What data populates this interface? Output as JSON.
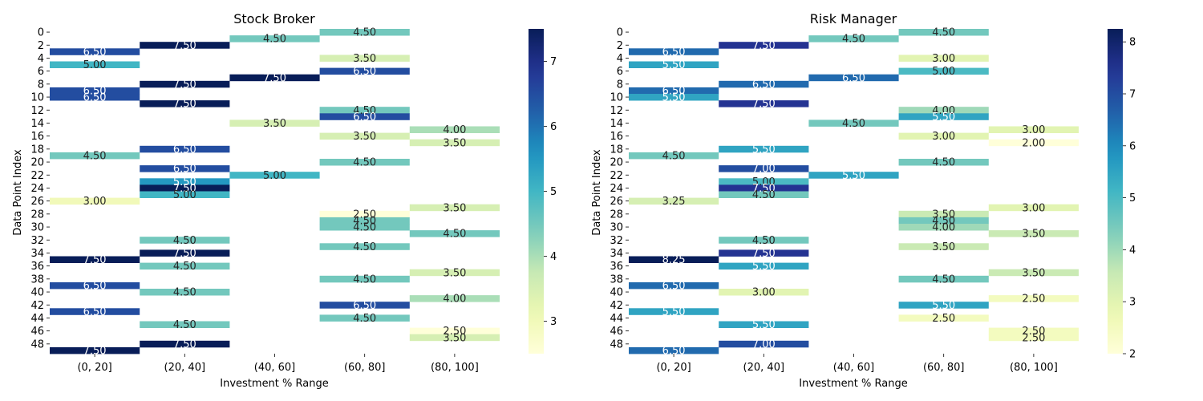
{
  "chart_data": [
    {
      "type": "heatmap",
      "title": "Stock Broker",
      "xlabel": "Investment % Range",
      "ylabel": "Data Point Index",
      "x_categories": [
        "(0, 20]",
        "(20, 40]",
        "(40, 60]",
        "(60, 80]",
        "(80, 100]"
      ],
      "y_tick_labels": [
        "0",
        "2",
        "4",
        "6",
        "8",
        "10",
        "12",
        "14",
        "16",
        "18",
        "20",
        "22",
        "24",
        "26",
        "28",
        "30",
        "32",
        "34",
        "36",
        "38",
        "40",
        "42",
        "44",
        "46",
        "48"
      ],
      "rows": 50,
      "colorbar": {
        "min": 2.5,
        "max": 7.5,
        "ticks": [
          "3",
          "4",
          "5",
          "6",
          "7"
        ]
      },
      "colormap": "YlGnBu",
      "cells": [
        {
          "row": 0,
          "col": 3,
          "value": 4.5,
          "label": "4.50"
        },
        {
          "row": 1,
          "col": 2,
          "value": 4.5,
          "label": "4.50"
        },
        {
          "row": 2,
          "col": 1,
          "value": 7.5,
          "label": "7.50"
        },
        {
          "row": 3,
          "col": 0,
          "value": 6.5,
          "label": "6.50"
        },
        {
          "row": 4,
          "col": 3,
          "value": 3.5,
          "label": "3.50"
        },
        {
          "row": 5,
          "col": 0,
          "value": 5.0,
          "label": "5.00"
        },
        {
          "row": 6,
          "col": 3,
          "value": 6.5,
          "label": "6.50"
        },
        {
          "row": 7,
          "col": 2,
          "value": 7.5,
          "label": "7.50"
        },
        {
          "row": 8,
          "col": 1,
          "value": 7.5,
          "label": "7.50"
        },
        {
          "row": 9,
          "col": 0,
          "value": 6.5,
          "label": "6.50"
        },
        {
          "row": 10,
          "col": 0,
          "value": 6.5,
          "label": "6.50"
        },
        {
          "row": 11,
          "col": 1,
          "value": 7.5,
          "label": "7.50"
        },
        {
          "row": 12,
          "col": 3,
          "value": 4.5,
          "label": "4.50"
        },
        {
          "row": 13,
          "col": 3,
          "value": 6.5,
          "label": "6.50"
        },
        {
          "row": 14,
          "col": 2,
          "value": 3.5,
          "label": "3.50"
        },
        {
          "row": 15,
          "col": 4,
          "value": 4.0,
          "label": "4.00"
        },
        {
          "row": 16,
          "col": 3,
          "value": 3.5,
          "label": "3.50"
        },
        {
          "row": 17,
          "col": 4,
          "value": 3.5,
          "label": "3.50"
        },
        {
          "row": 18,
          "col": 1,
          "value": 6.5,
          "label": "6.50"
        },
        {
          "row": 19,
          "col": 0,
          "value": 4.5,
          "label": "4.50"
        },
        {
          "row": 20,
          "col": 3,
          "value": 4.5,
          "label": "4.50"
        },
        {
          "row": 21,
          "col": 1,
          "value": 6.5,
          "label": "6.50"
        },
        {
          "row": 22,
          "col": 2,
          "value": 5.0,
          "label": "5.00"
        },
        {
          "row": 23,
          "col": 1,
          "value": 5.5,
          "label": "5.50"
        },
        {
          "row": 24,
          "col": 1,
          "value": 7.5,
          "label": "7.50"
        },
        {
          "row": 25,
          "col": 1,
          "value": 5.0,
          "label": "5.00"
        },
        {
          "row": 26,
          "col": 0,
          "value": 3.0,
          "label": "3.00"
        },
        {
          "row": 27,
          "col": 4,
          "value": 3.5,
          "label": "3.50"
        },
        {
          "row": 28,
          "col": 3,
          "value": 2.5,
          "label": "2.50"
        },
        {
          "row": 29,
          "col": 3,
          "value": 4.5,
          "label": "4.50"
        },
        {
          "row": 30,
          "col": 3,
          "value": 4.5,
          "label": "4.50"
        },
        {
          "row": 31,
          "col": 4,
          "value": 4.5,
          "label": "4.50"
        },
        {
          "row": 32,
          "col": 1,
          "value": 4.5,
          "label": "4.50"
        },
        {
          "row": 33,
          "col": 3,
          "value": 4.5,
          "label": "4.50"
        },
        {
          "row": 34,
          "col": 1,
          "value": 7.5,
          "label": "7.50"
        },
        {
          "row": 35,
          "col": 0,
          "value": 7.5,
          "label": "7.50"
        },
        {
          "row": 36,
          "col": 1,
          "value": 4.5,
          "label": "4.50"
        },
        {
          "row": 37,
          "col": 4,
          "value": 3.5,
          "label": "3.50"
        },
        {
          "row": 38,
          "col": 3,
          "value": 4.5,
          "label": "4.50"
        },
        {
          "row": 39,
          "col": 0,
          "value": 6.5,
          "label": "6.50"
        },
        {
          "row": 40,
          "col": 1,
          "value": 4.5,
          "label": "4.50"
        },
        {
          "row": 41,
          "col": 4,
          "value": 4.0,
          "label": "4.00"
        },
        {
          "row": 42,
          "col": 3,
          "value": 6.5,
          "label": "6.50"
        },
        {
          "row": 43,
          "col": 0,
          "value": 6.5,
          "label": "6.50"
        },
        {
          "row": 44,
          "col": 3,
          "value": 4.5,
          "label": "4.50"
        },
        {
          "row": 45,
          "col": 1,
          "value": 4.5,
          "label": "4.50"
        },
        {
          "row": 46,
          "col": 4,
          "value": 2.5,
          "label": "2.50"
        },
        {
          "row": 47,
          "col": 4,
          "value": 3.5,
          "label": "3.50"
        },
        {
          "row": 48,
          "col": 1,
          "value": 7.5,
          "label": "7.50"
        },
        {
          "row": 49,
          "col": 0,
          "value": 7.5,
          "label": "7.50"
        }
      ]
    },
    {
      "type": "heatmap",
      "title": "Risk Manager",
      "xlabel": "Investment % Range",
      "ylabel": "Data Point Index",
      "x_categories": [
        "(0, 20]",
        "(20, 40]",
        "(40, 60]",
        "(60, 80]",
        "(80, 100]"
      ],
      "y_tick_labels": [
        "0",
        "2",
        "4",
        "6",
        "8",
        "10",
        "12",
        "14",
        "16",
        "18",
        "20",
        "22",
        "24",
        "26",
        "28",
        "30",
        "32",
        "34",
        "36",
        "38",
        "40",
        "42",
        "44",
        "46",
        "48"
      ],
      "rows": 50,
      "colorbar": {
        "min": 2.0,
        "max": 8.25,
        "ticks": [
          "2",
          "3",
          "4",
          "5",
          "6",
          "7",
          "8"
        ]
      },
      "colormap": "YlGnBu",
      "cells": [
        {
          "row": 0,
          "col": 3,
          "value": 4.5,
          "label": "4.50"
        },
        {
          "row": 1,
          "col": 2,
          "value": 4.5,
          "label": "4.50"
        },
        {
          "row": 2,
          "col": 1,
          "value": 7.5,
          "label": "7.50"
        },
        {
          "row": 3,
          "col": 0,
          "value": 6.5,
          "label": "6.50"
        },
        {
          "row": 4,
          "col": 3,
          "value": 3.0,
          "label": "3.00"
        },
        {
          "row": 5,
          "col": 0,
          "value": 5.5,
          "label": "5.50"
        },
        {
          "row": 6,
          "col": 3,
          "value": 5.0,
          "label": "5.00"
        },
        {
          "row": 7,
          "col": 2,
          "value": 6.5,
          "label": "6.50"
        },
        {
          "row": 8,
          "col": 1,
          "value": 6.5,
          "label": "6.50"
        },
        {
          "row": 9,
          "col": 0,
          "value": 6.5,
          "label": "6.50"
        },
        {
          "row": 10,
          "col": 0,
          "value": 5.5,
          "label": "5.50"
        },
        {
          "row": 11,
          "col": 1,
          "value": 7.5,
          "label": "7.50"
        },
        {
          "row": 12,
          "col": 3,
          "value": 4.0,
          "label": "4.00"
        },
        {
          "row": 13,
          "col": 3,
          "value": 5.5,
          "label": "5.50"
        },
        {
          "row": 14,
          "col": 2,
          "value": 4.5,
          "label": "4.50"
        },
        {
          "row": 15,
          "col": 4,
          "value": 3.0,
          "label": "3.00"
        },
        {
          "row": 16,
          "col": 3,
          "value": 3.0,
          "label": "3.00"
        },
        {
          "row": 17,
          "col": 4,
          "value": 2.0,
          "label": "2.00"
        },
        {
          "row": 18,
          "col": 1,
          "value": 5.5,
          "label": "5.50"
        },
        {
          "row": 19,
          "col": 0,
          "value": 4.5,
          "label": "4.50"
        },
        {
          "row": 20,
          "col": 3,
          "value": 4.5,
          "label": "4.50"
        },
        {
          "row": 21,
          "col": 1,
          "value": 7.0,
          "label": "7.00"
        },
        {
          "row": 22,
          "col": 2,
          "value": 5.5,
          "label": "5.50"
        },
        {
          "row": 23,
          "col": 1,
          "value": 5.0,
          "label": "5.00"
        },
        {
          "row": 24,
          "col": 1,
          "value": 7.5,
          "label": "7.50"
        },
        {
          "row": 25,
          "col": 1,
          "value": 4.5,
          "label": "4.50"
        },
        {
          "row": 26,
          "col": 0,
          "value": 3.25,
          "label": "3.25"
        },
        {
          "row": 27,
          "col": 4,
          "value": 3.0,
          "label": "3.00"
        },
        {
          "row": 28,
          "col": 3,
          "value": 3.5,
          "label": "3.50"
        },
        {
          "row": 29,
          "col": 3,
          "value": 4.5,
          "label": "4.50"
        },
        {
          "row": 30,
          "col": 3,
          "value": 4.0,
          "label": "4.00"
        },
        {
          "row": 31,
          "col": 4,
          "value": 3.5,
          "label": "3.50"
        },
        {
          "row": 32,
          "col": 1,
          "value": 4.5,
          "label": "4.50"
        },
        {
          "row": 33,
          "col": 3,
          "value": 3.5,
          "label": "3.50"
        },
        {
          "row": 34,
          "col": 1,
          "value": 7.5,
          "label": "7.50"
        },
        {
          "row": 35,
          "col": 0,
          "value": 8.25,
          "label": "8.25"
        },
        {
          "row": 36,
          "col": 1,
          "value": 5.5,
          "label": "5.50"
        },
        {
          "row": 37,
          "col": 4,
          "value": 3.5,
          "label": "3.50"
        },
        {
          "row": 38,
          "col": 3,
          "value": 4.5,
          "label": "4.50"
        },
        {
          "row": 39,
          "col": 0,
          "value": 6.5,
          "label": "6.50"
        },
        {
          "row": 40,
          "col": 1,
          "value": 3.0,
          "label": "3.00"
        },
        {
          "row": 41,
          "col": 4,
          "value": 2.5,
          "label": "2.50"
        },
        {
          "row": 42,
          "col": 3,
          "value": 5.5,
          "label": "5.50"
        },
        {
          "row": 43,
          "col": 0,
          "value": 5.5,
          "label": "5.50"
        },
        {
          "row": 44,
          "col": 3,
          "value": 2.5,
          "label": "2.50"
        },
        {
          "row": 45,
          "col": 1,
          "value": 5.5,
          "label": "5.50"
        },
        {
          "row": 46,
          "col": 4,
          "value": 2.5,
          "label": "2.50"
        },
        {
          "row": 47,
          "col": 4,
          "value": 2.5,
          "label": "2.50"
        },
        {
          "row": 48,
          "col": 1,
          "value": 7.0,
          "label": "7.00"
        },
        {
          "row": 49,
          "col": 0,
          "value": 6.5,
          "label": "6.50"
        }
      ]
    }
  ]
}
